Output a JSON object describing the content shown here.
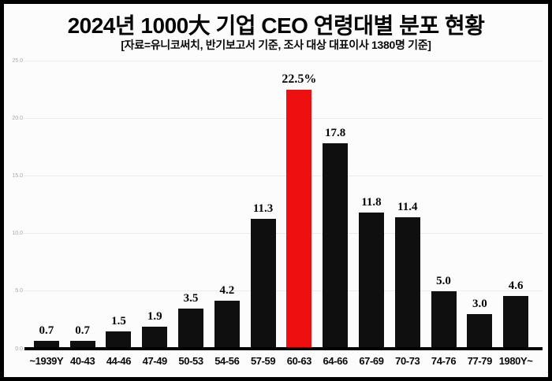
{
  "title": "2024년 1000大 기업 CEO 연령대별 분포 현황",
  "subtitle": "[자료=유니코써치, 반기보고서 기준, 조사 대상 대표이사 1380명 기준]",
  "chart_data": {
    "type": "bar",
    "title": "2024년 1000大 기업 CEO 연령대별 분포 현황",
    "subtitle": "[자료=유니코써치, 반기보고서 기준, 조사 대상 대표이사 1380명 기준]",
    "categories": [
      "~1939Y",
      "40-43",
      "44-46",
      "47-49",
      "50-53",
      "54-56",
      "57-59",
      "60-63",
      "64-66",
      "67-69",
      "70-73",
      "74-76",
      "77-79",
      "1980Y~"
    ],
    "values": [
      0.7,
      0.7,
      1.5,
      1.9,
      3.5,
      4.2,
      11.3,
      22.5,
      17.8,
      11.8,
      11.4,
      5.0,
      3.0,
      4.6
    ],
    "value_labels": [
      "0.7",
      "0.7",
      "1.5",
      "1.9",
      "3.5",
      "4.2",
      "11.3",
      "22.5%",
      "17.8",
      "11.8",
      "11.4",
      "5.0",
      "3.0",
      "4.6"
    ],
    "highlight_index": 7,
    "unit": "%",
    "xlabel": "",
    "ylabel": "",
    "ylim": [
      0,
      25
    ],
    "yticks": [
      0,
      5,
      10,
      15,
      20,
      25
    ],
    "ytick_labels": [
      "0.0",
      "5.0",
      "10.0",
      "15.0",
      "20.0",
      "25.0"
    ],
    "grid": true,
    "legend": false,
    "colors": {
      "bar": "#0f0f0f",
      "highlight": "#ee1010",
      "grid": "#ebebeb",
      "axis": "#000000",
      "background": "#fcfcfc",
      "value_label": "#050505",
      "ytick_label": "#a8a8a8"
    }
  }
}
